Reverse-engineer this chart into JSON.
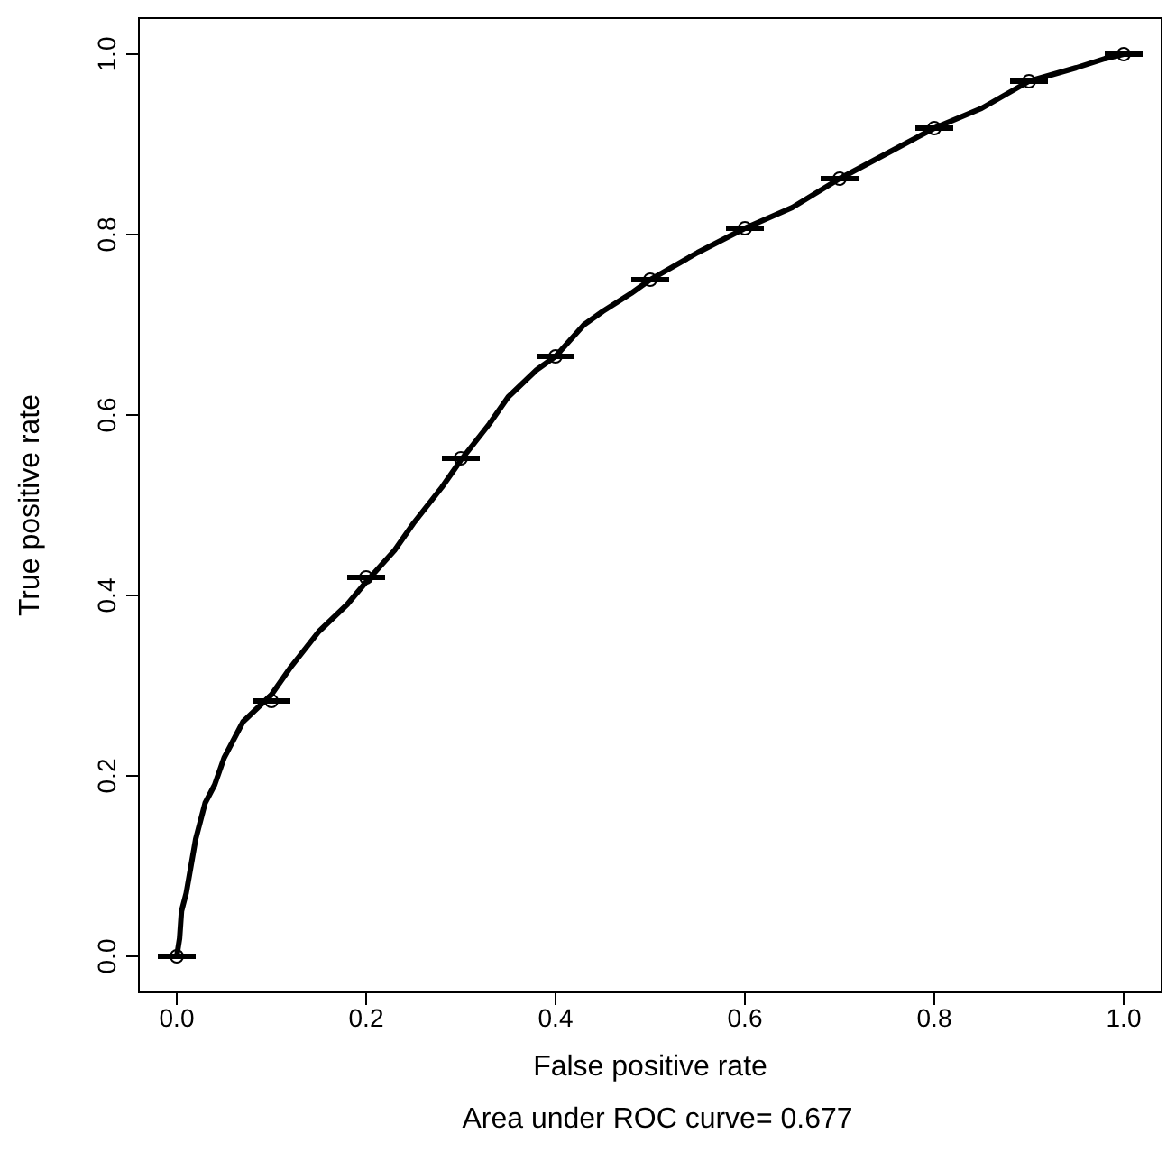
{
  "chart_data": {
    "type": "line",
    "xlabel": "False positive rate",
    "ylabel": "True positive rate",
    "annotations": [
      "Area under ROC curve= 0.677"
    ],
    "xlim": [
      -0.04,
      1.04
    ],
    "ylim": [
      -0.04,
      1.04
    ],
    "xticks": [
      {
        "value": 0,
        "label": "0.0"
      },
      {
        "value": 0.2,
        "label": "0.2"
      },
      {
        "value": 0.4,
        "label": "0.4"
      },
      {
        "value": 0.6,
        "label": "0.6"
      },
      {
        "value": 0.8,
        "label": "0.8"
      },
      {
        "value": 1,
        "label": "1.0"
      }
    ],
    "yticks": [
      {
        "value": 0,
        "label": "0.0"
      },
      {
        "value": 0.2,
        "label": "0.2"
      },
      {
        "value": 0.4,
        "label": "0.4"
      },
      {
        "value": 0.6,
        "label": "0.6"
      },
      {
        "value": 0.8,
        "label": "0.8"
      },
      {
        "value": 1,
        "label": "1.0"
      }
    ],
    "grid": false,
    "series": [
      {
        "color": "#000000",
        "x": [
          0,
          0.003,
          0.005,
          0.01,
          0.015,
          0.02,
          0.03,
          0.04,
          0.05,
          0.06,
          0.07,
          0.08,
          0.09,
          0.1,
          0.12,
          0.15,
          0.18,
          0.2,
          0.23,
          0.25,
          0.28,
          0.3,
          0.33,
          0.35,
          0.38,
          0.4,
          0.43,
          0.45,
          0.48,
          0.5,
          0.55,
          0.6,
          0.65,
          0.7,
          0.75,
          0.8,
          0.85,
          0.9,
          0.95,
          0.98,
          1.0
        ],
        "values": [
          0,
          0.02,
          0.05,
          0.07,
          0.1,
          0.13,
          0.17,
          0.19,
          0.22,
          0.24,
          0.26,
          0.27,
          0.28,
          0.29,
          0.32,
          0.36,
          0.39,
          0.415,
          0.45,
          0.48,
          0.52,
          0.55,
          0.59,
          0.62,
          0.65,
          0.665,
          0.7,
          0.715,
          0.735,
          0.75,
          0.78,
          0.807,
          0.83,
          0.862,
          0.89,
          0.918,
          0.94,
          0.97,
          0.985,
          0.995,
          1.0
        ]
      },
      {
        "type": "scatter",
        "color": "#000000",
        "marker": "circle",
        "x": [
          0,
          0.1,
          0.2,
          0.3,
          0.4,
          0.5,
          0.6,
          0.7,
          0.8,
          0.9,
          1.0
        ],
        "values": [
          0,
          0.283,
          0.42,
          0.552,
          0.665,
          0.75,
          0.807,
          0.862,
          0.918,
          0.97,
          1.0
        ],
        "xerrors": [
          0.02,
          0.02,
          0.02,
          0.02,
          0.02,
          0.02,
          0.02,
          0.02,
          0.02,
          0.02,
          0.02
        ]
      }
    ]
  }
}
